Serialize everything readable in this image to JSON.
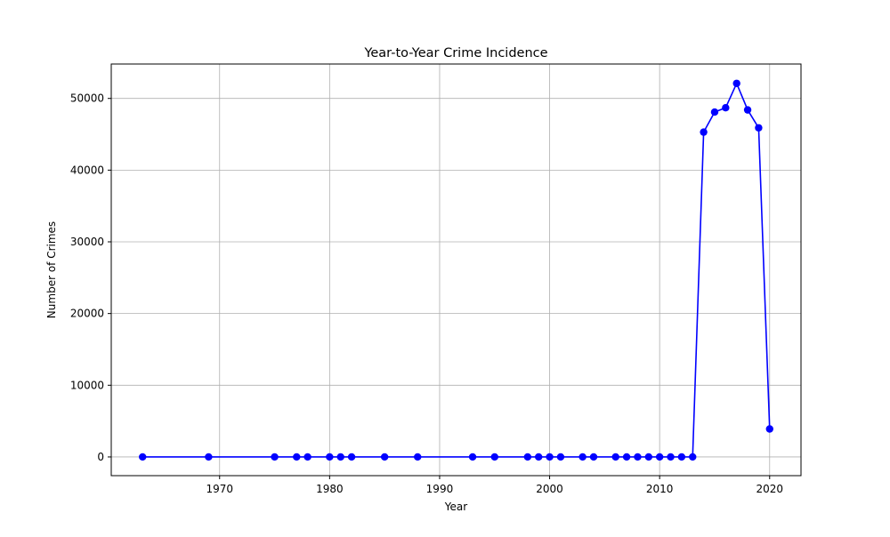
{
  "chart_data": {
    "type": "line",
    "title": "Year-to-Year Crime Incidence",
    "xlabel": "Year",
    "ylabel": "Number of Crimes",
    "xlim": [
      1960.15,
      2022.85
    ],
    "ylim": [
      -2610,
      54800
    ],
    "xticks": [
      1970,
      1980,
      1990,
      2000,
      2010,
      2020
    ],
    "yticks": [
      0,
      10000,
      20000,
      30000,
      40000,
      50000
    ],
    "grid": true,
    "legend": "none",
    "series": [
      {
        "color": "#0000ff",
        "marker": "circle",
        "x": [
          1963,
          1969,
          1975,
          1977,
          1978,
          1980,
          1981,
          1982,
          1985,
          1988,
          1993,
          1995,
          1998,
          1999,
          2000,
          2001,
          2003,
          2004,
          2006,
          2007,
          2008,
          2009,
          2010,
          2011,
          2012,
          2013,
          2014,
          2015,
          2016,
          2017,
          2018,
          2019,
          2020
        ],
        "y": [
          1,
          1,
          1,
          1,
          1,
          1,
          1,
          1,
          1,
          1,
          1,
          1,
          1,
          1,
          1,
          1,
          1,
          1,
          1,
          1,
          1,
          1,
          1,
          1,
          1,
          1,
          45300,
          48100,
          48700,
          52100,
          48400,
          45900,
          3900
        ]
      }
    ]
  }
}
